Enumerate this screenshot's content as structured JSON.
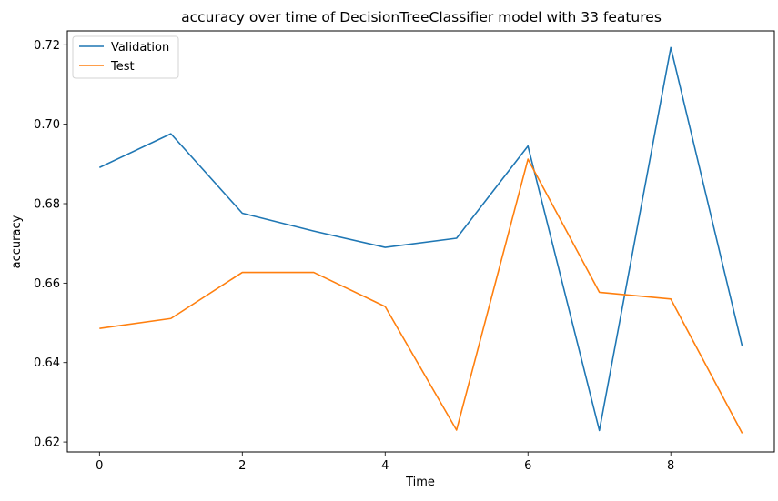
{
  "chart_data": {
    "type": "line",
    "title": "accuracy over time of DecisionTreeClassifier model with 33 features",
    "xlabel": "Time",
    "ylabel": "accuracy",
    "x": [
      0,
      1,
      2,
      3,
      4,
      5,
      6,
      7,
      8,
      9
    ],
    "xlim": [
      -0.45,
      9.45
    ],
    "ylim": [
      0.6175,
      0.7235
    ],
    "xticks": [
      0,
      2,
      4,
      6,
      8
    ],
    "yticks": [
      0.62,
      0.64,
      0.66,
      0.68,
      0.7,
      0.72
    ],
    "ytick_labels": [
      "0.62",
      "0.64",
      "0.66",
      "0.68",
      "0.70",
      "0.72"
    ],
    "grid": false,
    "legend_position": "top-left",
    "series": [
      {
        "name": "Validation",
        "color": "#1f77b4",
        "values": [
          0.6891,
          0.6976,
          0.6776,
          0.6731,
          0.669,
          0.6713,
          0.6945,
          0.6229,
          0.7193,
          0.6441
        ]
      },
      {
        "name": "Test",
        "color": "#ff7f0e",
        "values": [
          0.6486,
          0.6511,
          0.6627,
          0.6627,
          0.6541,
          0.623,
          0.6912,
          0.6577,
          0.656,
          0.6222
        ]
      }
    ]
  }
}
